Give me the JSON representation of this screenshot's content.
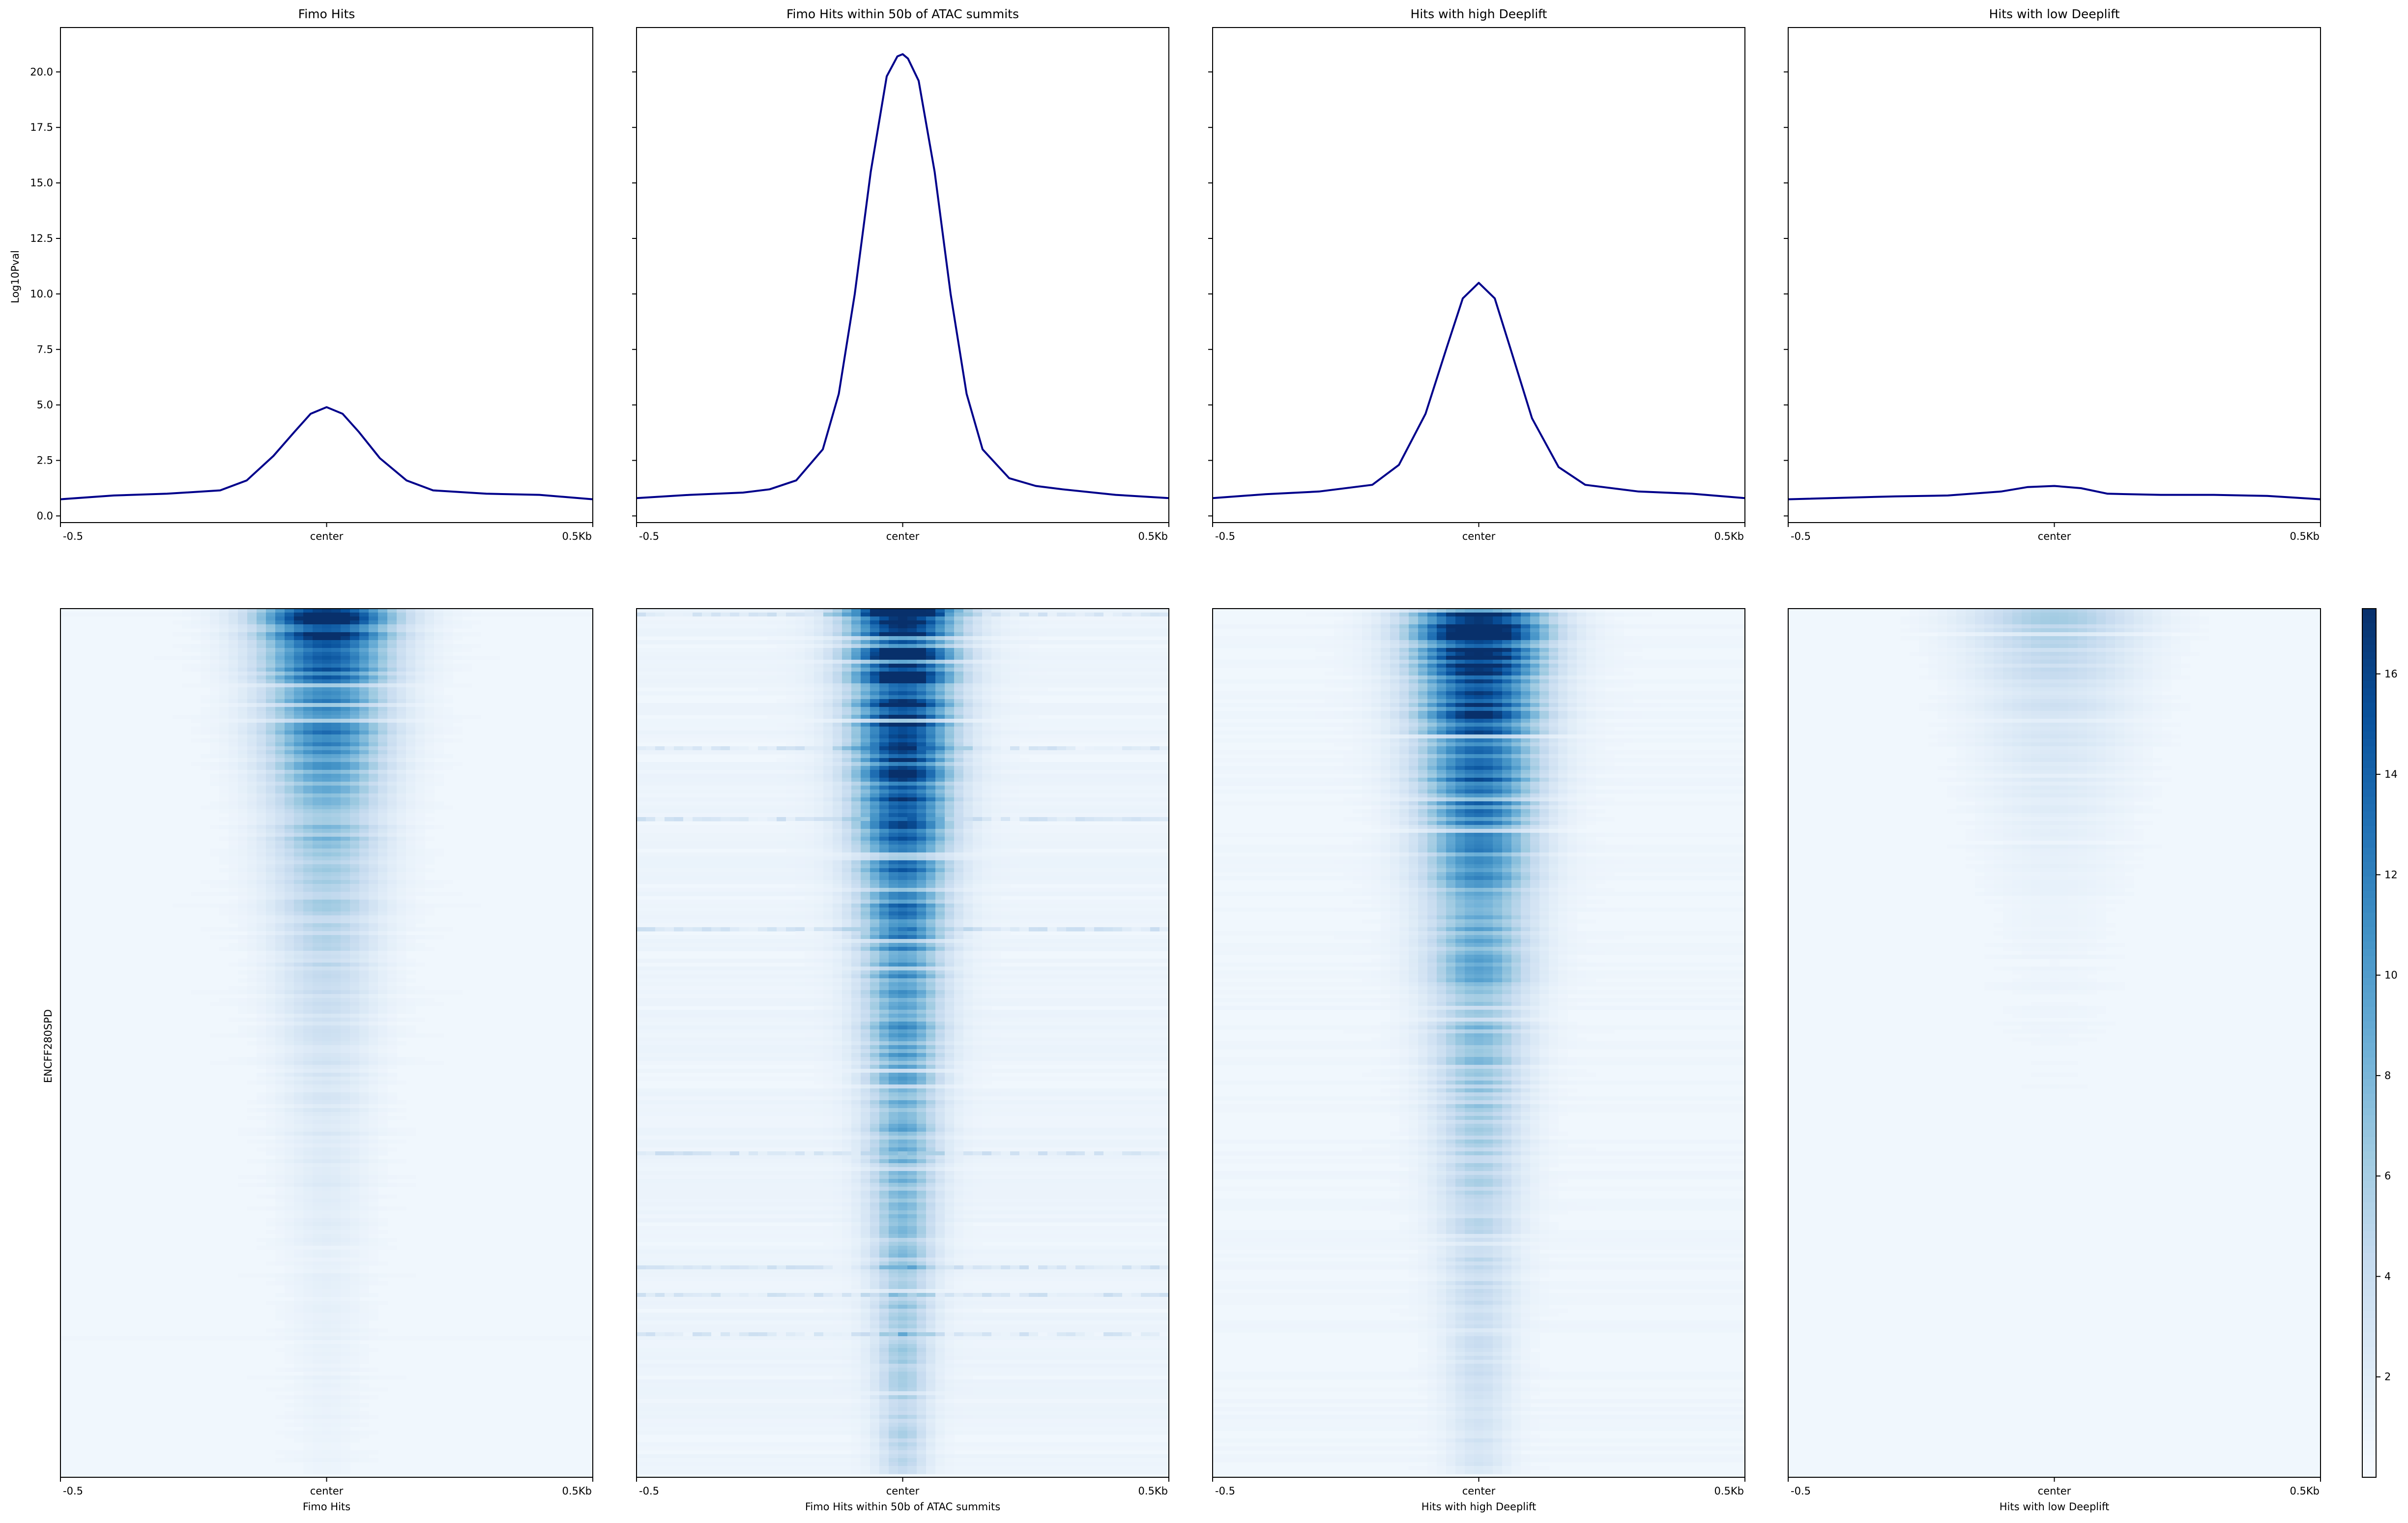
{
  "chart_data": {
    "type": "line",
    "profile_ylabel": "Log10Pval",
    "heatmap_ylabel": "ENCFF280SPD",
    "profile_ylim": [
      -0.3,
      22.0
    ],
    "profile_yticks": [
      "0.0",
      "2.5",
      "5.0",
      "7.5",
      "10.0",
      "12.5",
      "15.0",
      "17.5",
      "20.0"
    ],
    "x_tick_labels": [
      "-0.5",
      "center",
      "0.5Kb"
    ],
    "line_color": "#00008b",
    "colormap": "Blues",
    "colorbar_range": [
      0,
      17.3
    ],
    "colorbar_ticks": [
      "2",
      "4",
      "6",
      "8",
      "10",
      "12",
      "14",
      "16"
    ],
    "panels": [
      {
        "title": "Fimo Hits",
        "xlabel": "Fimo Hits",
        "profile": {
          "x": [
            -0.5,
            -0.4,
            -0.3,
            -0.2,
            -0.15,
            -0.1,
            -0.06,
            -0.03,
            0.0,
            0.03,
            0.06,
            0.1,
            0.15,
            0.2,
            0.3,
            0.4,
            0.5
          ],
          "y": [
            0.75,
            0.92,
            1.0,
            1.15,
            1.6,
            2.7,
            3.8,
            4.6,
            4.9,
            4.6,
            3.8,
            2.6,
            1.6,
            1.15,
            1.0,
            0.95,
            0.75
          ]
        },
        "heatmap": {
          "peak": 17.5,
          "decay": 3.8,
          "width": 0.085,
          "background": 0.6
        }
      },
      {
        "title": "Fimo Hits within 50b of ATAC summits",
        "xlabel": "Fimo Hits within 50b of ATAC summits",
        "profile": {
          "x": [
            -0.5,
            -0.4,
            -0.3,
            -0.25,
            -0.2,
            -0.15,
            -0.12,
            -0.09,
            -0.06,
            -0.03,
            -0.01,
            0.0,
            0.01,
            0.03,
            0.06,
            0.09,
            0.12,
            0.15,
            0.2,
            0.25,
            0.3,
            0.4,
            0.5
          ],
          "y": [
            0.8,
            0.95,
            1.05,
            1.2,
            1.6,
            3.0,
            5.5,
            10.0,
            15.5,
            19.8,
            20.7,
            20.8,
            20.6,
            19.6,
            15.5,
            10.0,
            5.5,
            3.0,
            1.7,
            1.35,
            1.2,
            0.95,
            0.8
          ]
        },
        "heatmap": {
          "peak": 19.0,
          "decay": 1.6,
          "width": 0.07,
          "background": 0.9
        }
      },
      {
        "title": "Hits with high Deeplift",
        "xlabel": "Hits with high Deeplift",
        "profile": {
          "x": [
            -0.5,
            -0.4,
            -0.3,
            -0.2,
            -0.15,
            -0.1,
            -0.06,
            -0.03,
            0.0,
            0.03,
            0.06,
            0.1,
            0.15,
            0.2,
            0.3,
            0.4,
            0.5
          ],
          "y": [
            0.8,
            0.98,
            1.1,
            1.4,
            2.3,
            4.6,
            7.6,
            9.8,
            10.5,
            9.8,
            7.5,
            4.4,
            2.2,
            1.4,
            1.1,
            1.0,
            0.8
          ]
        },
        "heatmap": {
          "peak": 18.5,
          "decay": 2.2,
          "width": 0.085,
          "background": 0.7
        }
      },
      {
        "title": "Hits with low Deeplift",
        "xlabel": "Hits with low Deeplift",
        "profile": {
          "x": [
            -0.5,
            -0.3,
            -0.2,
            -0.1,
            -0.05,
            0.0,
            0.05,
            0.1,
            0.2,
            0.3,
            0.4,
            0.5
          ],
          "y": [
            0.75,
            0.88,
            0.92,
            1.1,
            1.3,
            1.35,
            1.25,
            1.0,
            0.95,
            0.95,
            0.9,
            0.75
          ]
        },
        "heatmap": {
          "peak": 5.0,
          "decay": 6.0,
          "width": 0.11,
          "background": 0.5
        }
      }
    ]
  }
}
